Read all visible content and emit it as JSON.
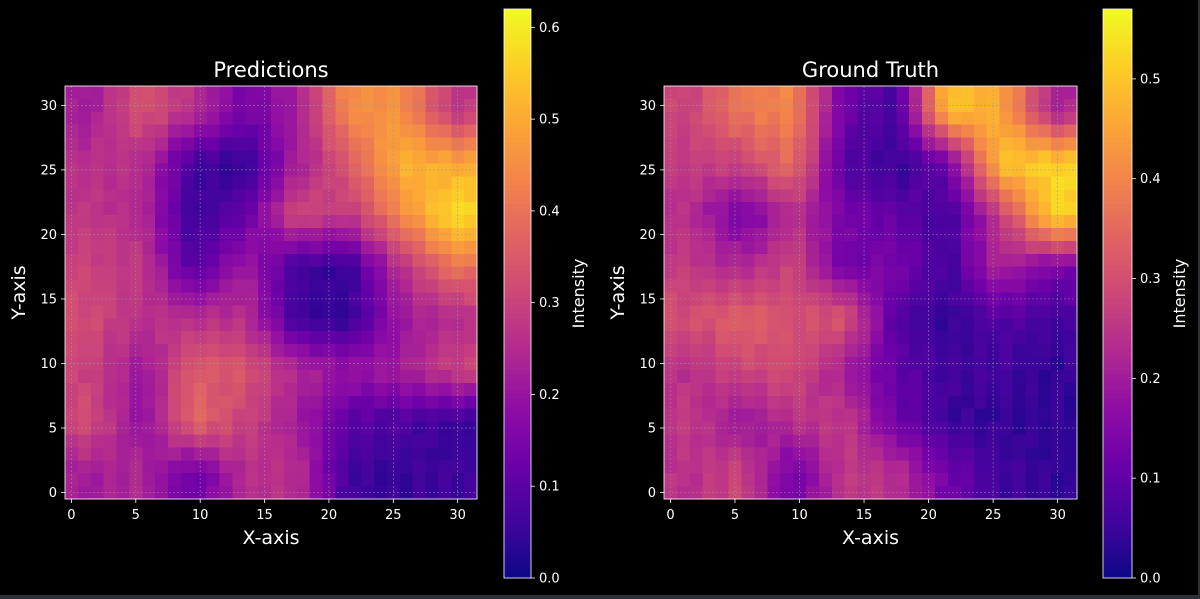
{
  "figure": {
    "background": "#000000",
    "text_color": "#ffffff",
    "grid_color": "#9a9a9a",
    "spine_color": "#ffffff",
    "colormap": "plasma"
  },
  "chart_data": [
    {
      "type": "heatmap",
      "title": "Predictions",
      "xlabel": "X-axis",
      "ylabel": "Y-axis",
      "xlim": [
        -0.5,
        31.5
      ],
      "ylim": [
        31.5,
        -0.5
      ],
      "xticks": [
        0,
        5,
        10,
        15,
        20,
        25,
        30
      ],
      "yticks": [
        0,
        5,
        10,
        15,
        20,
        25,
        30
      ],
      "grid": true,
      "colorbar": {
        "label": "Intensity",
        "range": [
          0.0,
          0.62
        ],
        "ticks": [
          0.0,
          0.1,
          0.2,
          0.3,
          0.4,
          0.5,
          0.6
        ],
        "tick_labels": [
          "0.0",
          "0.1",
          "0.2",
          "0.3",
          "0.4",
          "0.5",
          "0.6"
        ]
      },
      "grid_resolution": [
        32,
        32
      ],
      "coarse_rows": 8,
      "coarse_cols": 8,
      "coarse_values": [
        [
          0.22,
          0.34,
          0.26,
          0.14,
          0.22,
          0.45,
          0.46,
          0.28
        ],
        [
          0.26,
          0.26,
          0.06,
          0.04,
          0.22,
          0.35,
          0.52,
          0.5
        ],
        [
          0.28,
          0.24,
          0.05,
          0.12,
          0.32,
          0.28,
          0.44,
          0.58
        ],
        [
          0.3,
          0.28,
          0.08,
          0.22,
          0.06,
          0.05,
          0.26,
          0.4
        ],
        [
          0.32,
          0.26,
          0.26,
          0.26,
          0.06,
          0.04,
          0.2,
          0.25
        ],
        [
          0.3,
          0.2,
          0.36,
          0.34,
          0.24,
          0.2,
          0.22,
          0.3
        ],
        [
          0.32,
          0.18,
          0.38,
          0.3,
          0.22,
          0.1,
          0.08,
          0.05
        ],
        [
          0.22,
          0.24,
          0.12,
          0.26,
          0.26,
          0.06,
          0.05,
          0.06
        ]
      ]
    },
    {
      "type": "heatmap",
      "title": "Ground Truth",
      "xlabel": "X-axis",
      "ylabel": "Y-axis",
      "xlim": [
        -0.5,
        31.5
      ],
      "ylim": [
        31.5,
        -0.5
      ],
      "xticks": [
        0,
        5,
        10,
        15,
        20,
        25,
        30
      ],
      "yticks": [
        0,
        5,
        10,
        15,
        20,
        25,
        30
      ],
      "grid": true,
      "colorbar": {
        "label": "Intensity",
        "range": [
          0.0,
          0.57
        ],
        "ticks": [
          0.0,
          0.1,
          0.2,
          0.3,
          0.4,
          0.5
        ],
        "tick_labels": [
          "0.0",
          "0.1",
          "0.2",
          "0.3",
          "0.4",
          "0.5"
        ]
      },
      "grid_resolution": [
        32,
        32
      ],
      "coarse_rows": 8,
      "coarse_cols": 8,
      "coarse_values": [
        [
          0.28,
          0.38,
          0.4,
          0.12,
          0.06,
          0.5,
          0.46,
          0.22
        ],
        [
          0.26,
          0.28,
          0.36,
          0.08,
          0.04,
          0.12,
          0.5,
          0.52
        ],
        [
          0.24,
          0.12,
          0.24,
          0.14,
          0.1,
          0.06,
          0.26,
          0.52
        ],
        [
          0.26,
          0.22,
          0.28,
          0.12,
          0.14,
          0.06,
          0.22,
          0.14
        ],
        [
          0.3,
          0.34,
          0.3,
          0.32,
          0.08,
          0.04,
          0.08,
          0.06
        ],
        [
          0.24,
          0.28,
          0.3,
          0.2,
          0.1,
          0.06,
          0.06,
          0.04
        ],
        [
          0.26,
          0.18,
          0.24,
          0.26,
          0.12,
          0.05,
          0.04,
          0.04
        ],
        [
          0.24,
          0.28,
          0.12,
          0.26,
          0.24,
          0.12,
          0.06,
          0.04
        ]
      ]
    }
  ]
}
